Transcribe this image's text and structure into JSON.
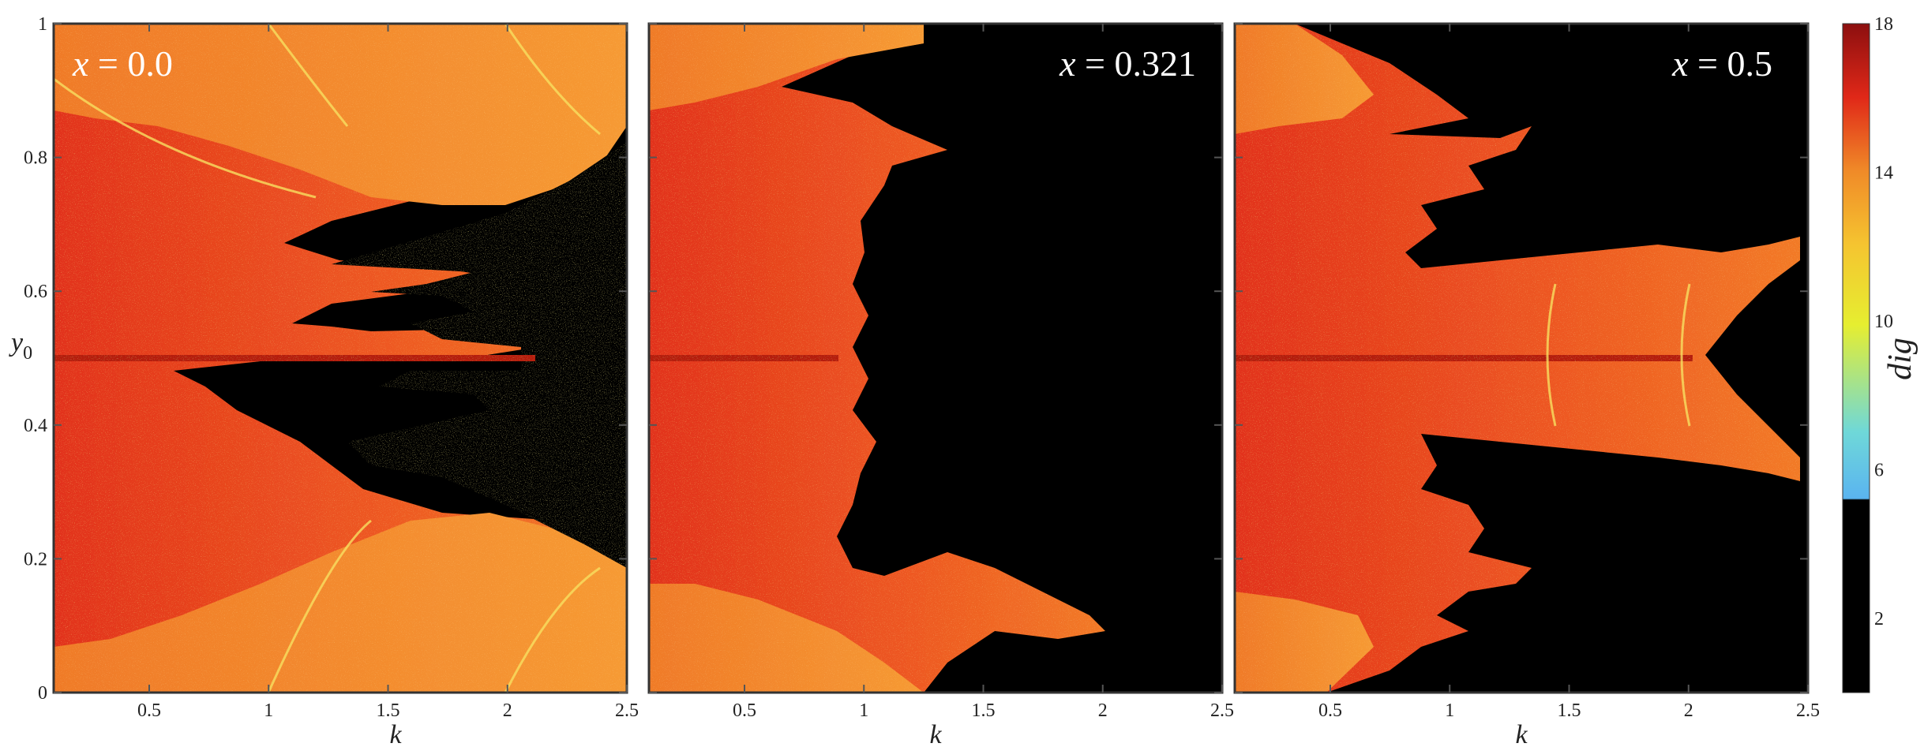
{
  "chart_data": [
    {
      "type": "heatmap",
      "panel_label": "x = 0.0",
      "panel_label_var": "x",
      "panel_label_value": "0.0",
      "xlabel": "k",
      "ylabel_main": "y",
      "ylabel_sub": "0",
      "xlim": [
        0.1,
        2.5
      ],
      "ylim": [
        0,
        1
      ],
      "x_ticks": [
        0.5,
        1,
        1.5,
        2,
        2.5
      ],
      "x_tick_labels": [
        "0.5",
        "1",
        "1.5",
        "2",
        "2.5"
      ],
      "y_ticks": [
        0,
        0.2,
        0.4,
        0.6,
        0.8,
        1
      ],
      "y_tick_labels": [
        "0",
        "0.2",
        "0.4",
        "0.6",
        "0.8",
        "1"
      ],
      "regions": [
        {
          "description": "high-dig (orange-red) region spanning full y at low k",
          "k_range": [
            0.1,
            1.0
          ],
          "dig": 15
        },
        {
          "description": "upper lobe boundary narrows with k",
          "k_edge_at_y": [
            [
              0.9,
              2.3
            ],
            [
              0.8,
              2.0
            ],
            [
              0.7,
              1.3
            ],
            [
              0.6,
              1.5
            ],
            [
              0.55,
              1.9
            ],
            [
              0.5,
              2.1
            ],
            [
              0.45,
              1.9
            ],
            [
              0.4,
              1.5
            ],
            [
              0.3,
              1.3
            ],
            [
              0.2,
              2.0
            ],
            [
              0.1,
              2.3
            ]
          ]
        },
        {
          "description": "black (low dig) central region",
          "k_range": [
            1.5,
            2.5
          ],
          "y_range": [
            0.3,
            0.85
          ],
          "dig": 2
        }
      ]
    },
    {
      "type": "heatmap",
      "panel_label": "x = 0.321",
      "panel_label_var": "x",
      "panel_label_value": "0.321",
      "xlabel": "k",
      "xlim": [
        0.1,
        2.5
      ],
      "ylim": [
        0,
        1
      ],
      "x_ticks": [
        0.5,
        1,
        1.5,
        2,
        2.5
      ],
      "x_tick_labels": [
        "0.5",
        "1",
        "1.5",
        "2",
        "2.5"
      ],
      "k_edge_at_y": [
        [
          0.98,
          1.1
        ],
        [
          0.9,
          0.6
        ],
        [
          0.8,
          1.1
        ],
        [
          0.7,
          1.0
        ],
        [
          0.6,
          0.85
        ],
        [
          0.5,
          0.9
        ],
        [
          0.4,
          0.85
        ],
        [
          0.3,
          0.9
        ],
        [
          0.2,
          0.8
        ],
        [
          0.1,
          1.9
        ]
      ]
    },
    {
      "type": "heatmap",
      "panel_label": "x = 0.5",
      "panel_label_var": "x",
      "panel_label_value": "0.5",
      "xlabel": "k",
      "xlim": [
        0.1,
        2.5
      ],
      "ylim": [
        0,
        1
      ],
      "x_ticks": [
        0.5,
        1,
        1.5,
        2,
        2.5
      ],
      "x_tick_labels": [
        "0.5",
        "1",
        "1.5",
        "2",
        "2.5"
      ],
      "k_edge_at_y": [
        [
          0.95,
          1.2
        ],
        [
          0.85,
          1.3
        ],
        [
          0.8,
          1.2
        ],
        [
          0.7,
          1.0
        ],
        [
          0.65,
          2.45
        ],
        [
          0.5,
          2.0
        ],
        [
          0.35,
          2.45
        ],
        [
          0.3,
          1.0
        ],
        [
          0.2,
          1.2
        ],
        [
          0.1,
          1.3
        ]
      ]
    }
  ],
  "colorbar": {
    "label": "dig",
    "range": [
      0,
      18
    ],
    "ticks": [
      2,
      6,
      10,
      14,
      18
    ],
    "tick_labels": [
      "2",
      "6",
      "10",
      "14",
      "18"
    ],
    "colors": [
      {
        "value": 0,
        "color": "#000000"
      },
      {
        "value": 5.2,
        "color": "#000000"
      },
      {
        "value": 5.3,
        "color": "#5ab4f0"
      },
      {
        "value": 7,
        "color": "#6fd8d8"
      },
      {
        "value": 10,
        "color": "#e6ee30"
      },
      {
        "value": 12,
        "color": "#f5c430"
      },
      {
        "value": 14,
        "color": "#f08a28"
      },
      {
        "value": 16,
        "color": "#e02818"
      },
      {
        "value": 18,
        "color": "#8c0f0f"
      }
    ]
  },
  "colors": {
    "orange": "#f4892c",
    "red_orange": "#e5401f",
    "deep_red": "#c41a12",
    "yellow": "#f5e050",
    "black": "#000000"
  }
}
